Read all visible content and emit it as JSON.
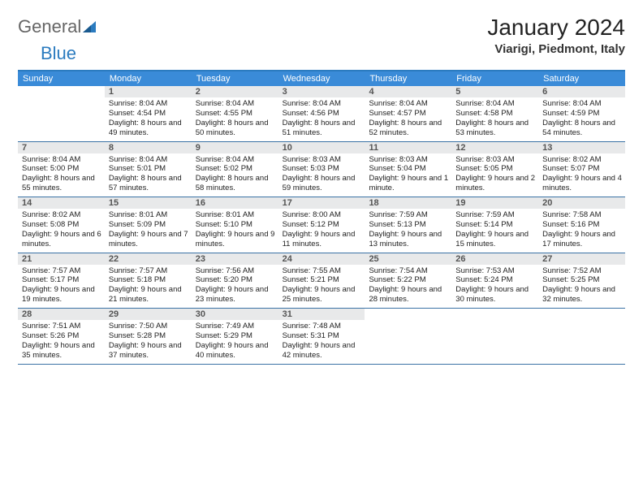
{
  "brand": {
    "part1": "General",
    "part2": "Blue"
  },
  "title": "January 2024",
  "location": "Viarigi, Piedmont, Italy",
  "colors": {
    "header_bar": "#3a8bd8",
    "accent": "#2b7bbf",
    "daynum_bg": "#e8e9ea",
    "week_border": "#3a72a5"
  },
  "days_of_week": [
    "Sunday",
    "Monday",
    "Tuesday",
    "Wednesday",
    "Thursday",
    "Friday",
    "Saturday"
  ],
  "weeks": [
    [
      {
        "n": "",
        "l": [
          "",
          "",
          ""
        ]
      },
      {
        "n": "1",
        "l": [
          "Sunrise: 8:04 AM",
          "Sunset: 4:54 PM",
          "Daylight: 8 hours and 49 minutes."
        ]
      },
      {
        "n": "2",
        "l": [
          "Sunrise: 8:04 AM",
          "Sunset: 4:55 PM",
          "Daylight: 8 hours and 50 minutes."
        ]
      },
      {
        "n": "3",
        "l": [
          "Sunrise: 8:04 AM",
          "Sunset: 4:56 PM",
          "Daylight: 8 hours and 51 minutes."
        ]
      },
      {
        "n": "4",
        "l": [
          "Sunrise: 8:04 AM",
          "Sunset: 4:57 PM",
          "Daylight: 8 hours and 52 minutes."
        ]
      },
      {
        "n": "5",
        "l": [
          "Sunrise: 8:04 AM",
          "Sunset: 4:58 PM",
          "Daylight: 8 hours and 53 minutes."
        ]
      },
      {
        "n": "6",
        "l": [
          "Sunrise: 8:04 AM",
          "Sunset: 4:59 PM",
          "Daylight: 8 hours and 54 minutes."
        ]
      }
    ],
    [
      {
        "n": "7",
        "l": [
          "Sunrise: 8:04 AM",
          "Sunset: 5:00 PM",
          "Daylight: 8 hours and 55 minutes."
        ]
      },
      {
        "n": "8",
        "l": [
          "Sunrise: 8:04 AM",
          "Sunset: 5:01 PM",
          "Daylight: 8 hours and 57 minutes."
        ]
      },
      {
        "n": "9",
        "l": [
          "Sunrise: 8:04 AM",
          "Sunset: 5:02 PM",
          "Daylight: 8 hours and 58 minutes."
        ]
      },
      {
        "n": "10",
        "l": [
          "Sunrise: 8:03 AM",
          "Sunset: 5:03 PM",
          "Daylight: 8 hours and 59 minutes."
        ]
      },
      {
        "n": "11",
        "l": [
          "Sunrise: 8:03 AM",
          "Sunset: 5:04 PM",
          "Daylight: 9 hours and 1 minute."
        ]
      },
      {
        "n": "12",
        "l": [
          "Sunrise: 8:03 AM",
          "Sunset: 5:05 PM",
          "Daylight: 9 hours and 2 minutes."
        ]
      },
      {
        "n": "13",
        "l": [
          "Sunrise: 8:02 AM",
          "Sunset: 5:07 PM",
          "Daylight: 9 hours and 4 minutes."
        ]
      }
    ],
    [
      {
        "n": "14",
        "l": [
          "Sunrise: 8:02 AM",
          "Sunset: 5:08 PM",
          "Daylight: 9 hours and 6 minutes."
        ]
      },
      {
        "n": "15",
        "l": [
          "Sunrise: 8:01 AM",
          "Sunset: 5:09 PM",
          "Daylight: 9 hours and 7 minutes."
        ]
      },
      {
        "n": "16",
        "l": [
          "Sunrise: 8:01 AM",
          "Sunset: 5:10 PM",
          "Daylight: 9 hours and 9 minutes."
        ]
      },
      {
        "n": "17",
        "l": [
          "Sunrise: 8:00 AM",
          "Sunset: 5:12 PM",
          "Daylight: 9 hours and 11 minutes."
        ]
      },
      {
        "n": "18",
        "l": [
          "Sunrise: 7:59 AM",
          "Sunset: 5:13 PM",
          "Daylight: 9 hours and 13 minutes."
        ]
      },
      {
        "n": "19",
        "l": [
          "Sunrise: 7:59 AM",
          "Sunset: 5:14 PM",
          "Daylight: 9 hours and 15 minutes."
        ]
      },
      {
        "n": "20",
        "l": [
          "Sunrise: 7:58 AM",
          "Sunset: 5:16 PM",
          "Daylight: 9 hours and 17 minutes."
        ]
      }
    ],
    [
      {
        "n": "21",
        "l": [
          "Sunrise: 7:57 AM",
          "Sunset: 5:17 PM",
          "Daylight: 9 hours and 19 minutes."
        ]
      },
      {
        "n": "22",
        "l": [
          "Sunrise: 7:57 AM",
          "Sunset: 5:18 PM",
          "Daylight: 9 hours and 21 minutes."
        ]
      },
      {
        "n": "23",
        "l": [
          "Sunrise: 7:56 AM",
          "Sunset: 5:20 PM",
          "Daylight: 9 hours and 23 minutes."
        ]
      },
      {
        "n": "24",
        "l": [
          "Sunrise: 7:55 AM",
          "Sunset: 5:21 PM",
          "Daylight: 9 hours and 25 minutes."
        ]
      },
      {
        "n": "25",
        "l": [
          "Sunrise: 7:54 AM",
          "Sunset: 5:22 PM",
          "Daylight: 9 hours and 28 minutes."
        ]
      },
      {
        "n": "26",
        "l": [
          "Sunrise: 7:53 AM",
          "Sunset: 5:24 PM",
          "Daylight: 9 hours and 30 minutes."
        ]
      },
      {
        "n": "27",
        "l": [
          "Sunrise: 7:52 AM",
          "Sunset: 5:25 PM",
          "Daylight: 9 hours and 32 minutes."
        ]
      }
    ],
    [
      {
        "n": "28",
        "l": [
          "Sunrise: 7:51 AM",
          "Sunset: 5:26 PM",
          "Daylight: 9 hours and 35 minutes."
        ]
      },
      {
        "n": "29",
        "l": [
          "Sunrise: 7:50 AM",
          "Sunset: 5:28 PM",
          "Daylight: 9 hours and 37 minutes."
        ]
      },
      {
        "n": "30",
        "l": [
          "Sunrise: 7:49 AM",
          "Sunset: 5:29 PM",
          "Daylight: 9 hours and 40 minutes."
        ]
      },
      {
        "n": "31",
        "l": [
          "Sunrise: 7:48 AM",
          "Sunset: 5:31 PM",
          "Daylight: 9 hours and 42 minutes."
        ]
      },
      {
        "n": "",
        "l": [
          "",
          "",
          ""
        ]
      },
      {
        "n": "",
        "l": [
          "",
          "",
          ""
        ]
      },
      {
        "n": "",
        "l": [
          "",
          "",
          ""
        ]
      }
    ]
  ]
}
